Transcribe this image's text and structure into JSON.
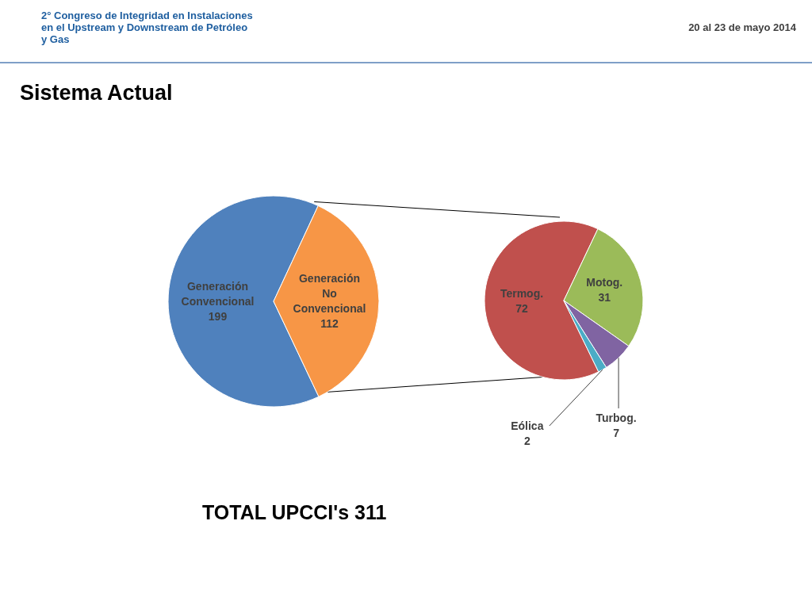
{
  "chart_data": [
    {
      "type": "pie",
      "title": "Sistema Actual",
      "categories": [
        "Generación Convencional",
        "Generación No Convencional"
      ],
      "values": [
        199,
        112
      ],
      "colors": [
        "#4f81bd",
        "#f79646"
      ],
      "data_labels": true,
      "annotations": [
        "2° Congreso de Integridad en Instalaciones en el Upstream y Downstream de Petróleo y Gas",
        "20 al 23 de mayo 2014",
        "TOTAL UPCCI's 311"
      ]
    },
    {
      "type": "pie",
      "categories": [
        "Termog.",
        "Motog.",
        "Turbog.",
        "Eólica"
      ],
      "values": [
        72,
        31,
        7,
        2
      ],
      "colors": [
        "#c0504d",
        "#9bbb59",
        "#8064a2",
        "#4bacc6"
      ],
      "data_labels": true
    }
  ]
}
